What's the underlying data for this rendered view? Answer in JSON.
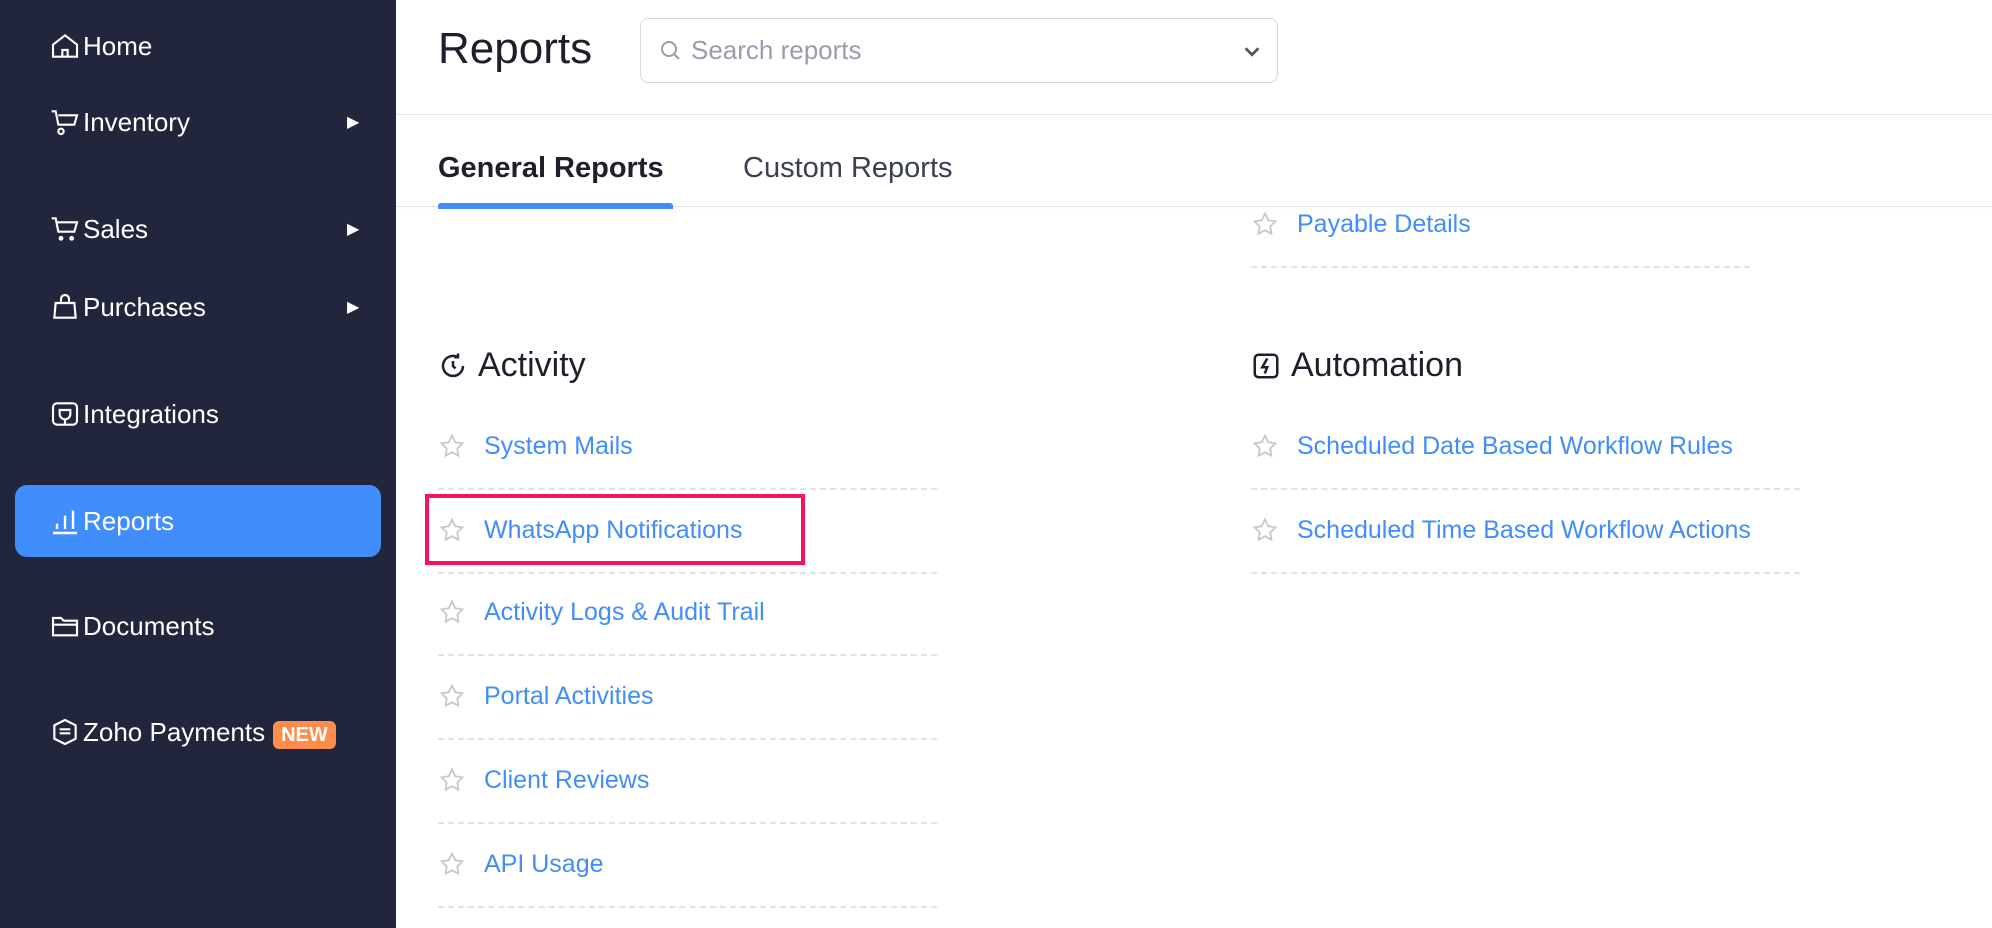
{
  "sidebar": {
    "items": [
      {
        "label": "Home",
        "icon": "home-icon"
      },
      {
        "label": "Inventory",
        "icon": "inventory-icon",
        "has_submenu": true
      },
      {
        "label": "Sales",
        "icon": "cart-icon",
        "has_submenu": true
      },
      {
        "label": "Purchases",
        "icon": "bag-icon",
        "has_submenu": true
      },
      {
        "label": "Integrations",
        "icon": "plug-icon"
      },
      {
        "label": "Reports",
        "icon": "bar-chart-icon",
        "active": true
      },
      {
        "label": "Documents",
        "icon": "folder-icon"
      },
      {
        "label": "Zoho Payments",
        "icon": "payments-icon",
        "badge": "NEW"
      }
    ],
    "active_color": "#408dfb",
    "bg_color": "#21263c"
  },
  "header": {
    "title": "Reports",
    "search_placeholder": "Search reports"
  },
  "tabs": [
    {
      "label": "General Reports",
      "active": true
    },
    {
      "label": "Custom Reports"
    }
  ],
  "sections": {
    "prev_right": {
      "items": [
        "Payable Details"
      ]
    },
    "activity": {
      "title": "Activity",
      "items": [
        "System Mails",
        "WhatsApp Notifications",
        "Activity Logs & Audit Trail",
        "Portal Activities",
        "Client Reviews",
        "API Usage"
      ],
      "highlighted": "WhatsApp Notifications"
    },
    "automation": {
      "title": "Automation",
      "items": [
        "Scheduled Date Based Workflow Rules",
        "Scheduled Time Based Workflow Actions"
      ]
    }
  },
  "highlight_color": "#f5145a"
}
